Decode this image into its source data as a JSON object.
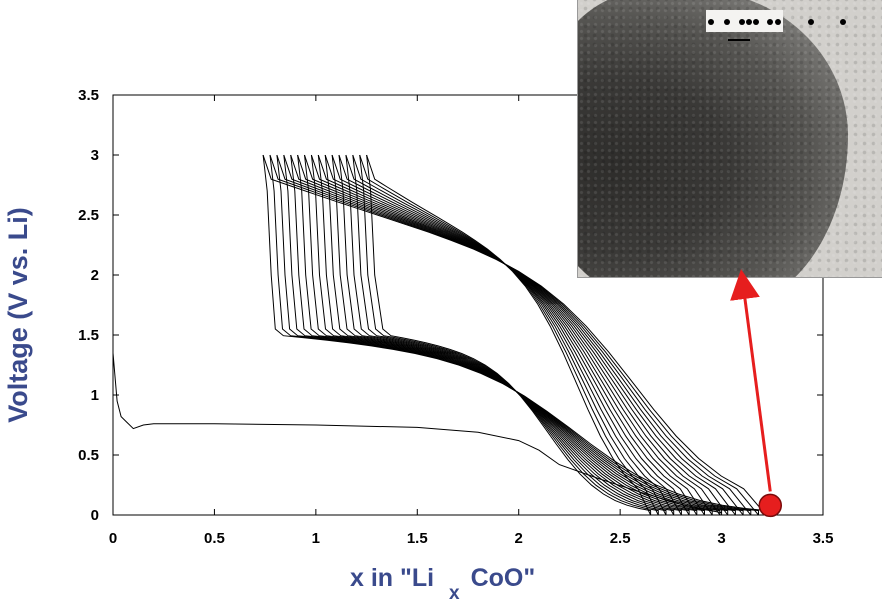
{
  "chart_data": {
    "type": "line",
    "title": "",
    "xlabel": {
      "prefix": "x in \"Li",
      "subscript": "x",
      "suffix": "CoO\""
    },
    "ylabel": "Voltage (V vs. Li)",
    "xlim": [
      0,
      3.5
    ],
    "ylim": [
      0,
      3.5
    ],
    "x_ticks": [
      "0",
      "0.5",
      "1",
      "1.5",
      "2",
      "2.5",
      "3",
      "3.5"
    ],
    "y_ticks": [
      "0",
      "0.5",
      "1",
      "1.5",
      "2",
      "2.5",
      "3",
      "3.5"
    ],
    "grid": false,
    "legend": "none",
    "line_color": "#000000",
    "first_discharge": {
      "x": [
        0.0,
        0.02,
        0.04,
        0.07,
        0.1,
        0.15,
        0.2,
        0.5,
        1.0,
        1.5,
        1.8,
        2.0,
        2.1,
        2.2,
        2.4,
        2.6,
        2.8,
        2.9,
        3.0
      ],
      "y": [
        1.35,
        0.95,
        0.82,
        0.77,
        0.72,
        0.75,
        0.76,
        0.76,
        0.75,
        0.73,
        0.69,
        0.62,
        0.54,
        0.42,
        0.3,
        0.19,
        0.09,
        0.05,
        0.02
      ]
    },
    "cycles": {
      "count": 16,
      "charge_end_x": {
        "first": 0.74,
        "last": 1.25
      },
      "discharge_end_x": {
        "first": 3.22,
        "last": 2.65
      },
      "discharge_plateau_x": [
        0.8,
        1.0,
        1.2,
        1.5,
        1.8,
        2.2,
        2.5
      ],
      "discharge_plateau_y": [
        1.45,
        1.4,
        1.35,
        1.28,
        1.15,
        0.9,
        0.6
      ],
      "charge_plateau_x": [
        2.8,
        2.4,
        2.0,
        1.6,
        1.3,
        1.05,
        0.85
      ],
      "charge_plateau_y": [
        0.6,
        1.1,
        2.05,
        2.28,
        2.45,
        2.65,
        3.0
      ]
    },
    "marker": {
      "x": 3.24,
      "y": 0.08,
      "color": "#e61e1e",
      "arrow_color": "#e61e1e",
      "arrow_target": "inset TEM image"
    },
    "inset": {
      "type": "TEM image",
      "scale_bar_label": "• • ••• •• • •"
    }
  }
}
